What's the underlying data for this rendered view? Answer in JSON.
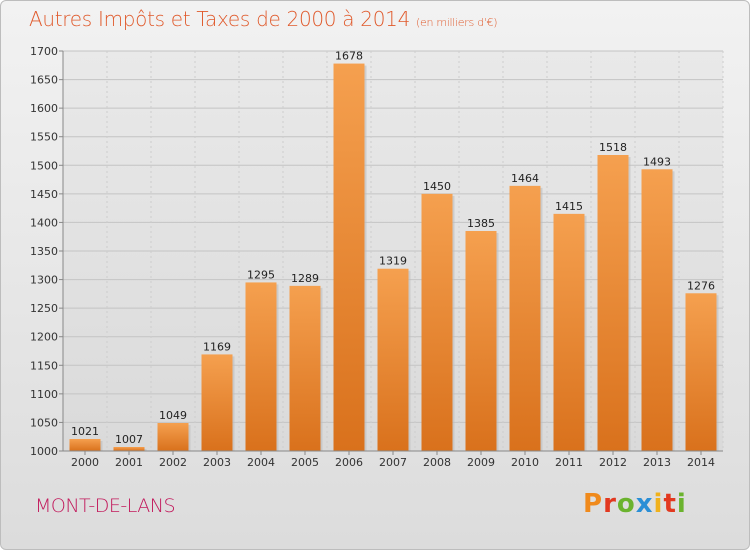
{
  "header": {
    "title": "Autres Impôts et Taxes de 2000 à 2014",
    "subtitle": "(en milliers d'€)"
  },
  "footer": {
    "commune": "MONT-DE-LANS",
    "brand": "Proxiti"
  },
  "colors": {
    "bar_top": "#f5a04f",
    "bar_bottom": "#d9711c",
    "title": "#e05a2c",
    "commune": "#c2185b"
  },
  "chart_data": {
    "type": "bar",
    "title": "Autres Impôts et Taxes de 2000 à 2014",
    "subtitle": "(en milliers d'€)",
    "categories": [
      "2000",
      "2001",
      "2002",
      "2003",
      "2004",
      "2005",
      "2006",
      "2007",
      "2008",
      "2009",
      "2010",
      "2011",
      "2012",
      "2013",
      "2014"
    ],
    "values": [
      1021,
      1007,
      1049,
      1169,
      1295,
      1289,
      1678,
      1319,
      1450,
      1385,
      1464,
      1415,
      1518,
      1493,
      1276
    ],
    "ylim": [
      1000,
      1700
    ],
    "yticks": [
      1000,
      1050,
      1100,
      1150,
      1200,
      1250,
      1300,
      1350,
      1400,
      1450,
      1500,
      1550,
      1600,
      1650,
      1700
    ],
    "grid": true,
    "data_labels": true
  }
}
